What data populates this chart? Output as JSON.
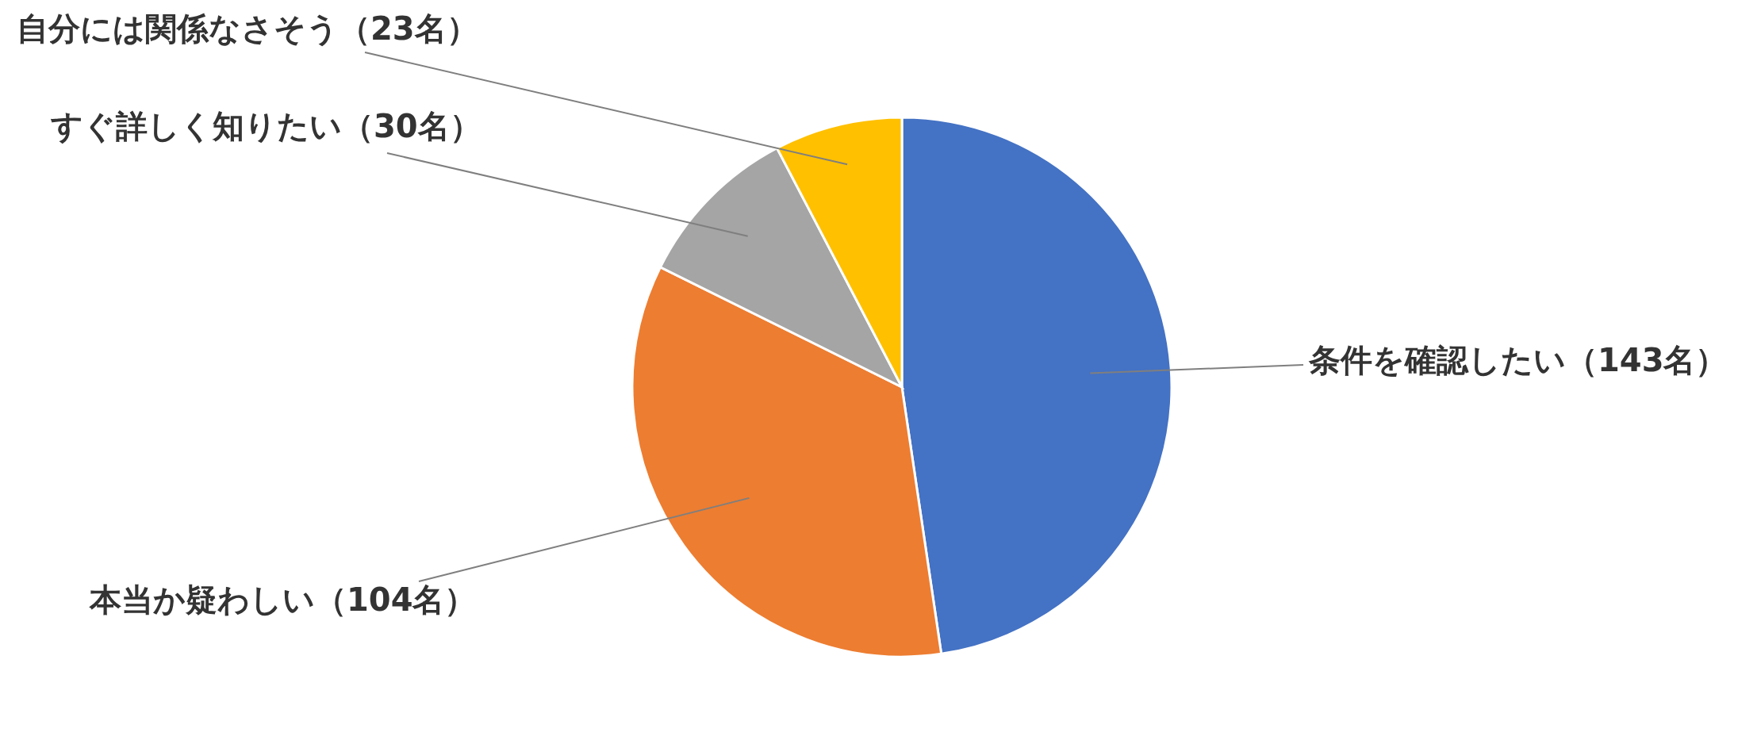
{
  "chart_data": {
    "type": "pie",
    "categories": [
      "条件を確認したい",
      "本当か疑わしい",
      "すぐ詳しく知りたい",
      "自分には関係なさそう"
    ],
    "values": [
      143,
      104,
      30,
      23
    ],
    "value_labels": [
      "（143名）",
      "（104名）",
      "（30名）",
      "（23名）"
    ],
    "colors": [
      "#4472c4",
      "#ed7d31",
      "#a5a5a5",
      "#ffc000"
    ]
  }
}
